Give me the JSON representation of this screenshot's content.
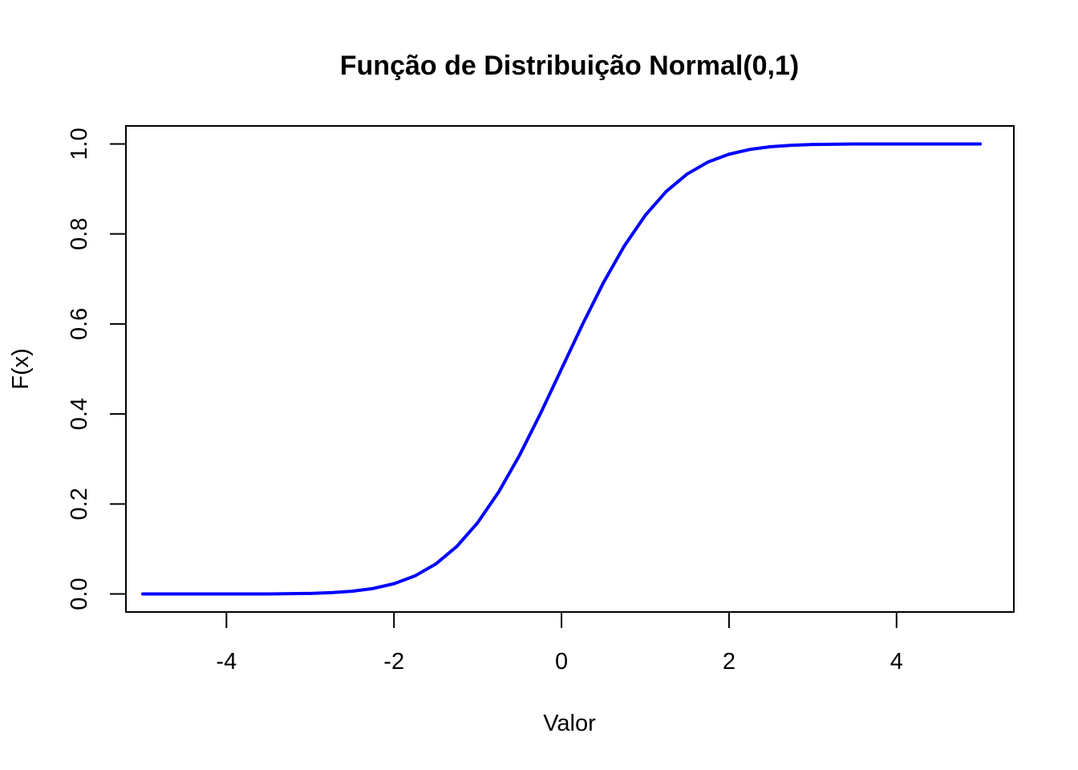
{
  "chart_data": {
    "type": "line",
    "title": "Função de Distribuição Normal(0,1)",
    "xlabel": "Valor",
    "ylabel": "F(x)",
    "xlim": [
      -5.2,
      5.4
    ],
    "ylim": [
      -0.04,
      1.04
    ],
    "x_ticks": [
      -4,
      -2,
      0,
      2,
      4
    ],
    "x_tick_labels": [
      "-4",
      "-2",
      "0",
      "2",
      "4"
    ],
    "y_ticks": [
      0.0,
      0.2,
      0.4,
      0.6,
      0.8,
      1.0
    ],
    "y_tick_labels": [
      "0.0",
      "0.2",
      "0.4",
      "0.6",
      "0.8",
      "1.0"
    ],
    "grid": false,
    "series": [
      {
        "color": "#0000ff",
        "x": [
          -5,
          -4.5,
          -4,
          -3.5,
          -3,
          -2.75,
          -2.5,
          -2.25,
          -2,
          -1.75,
          -1.5,
          -1.25,
          -1,
          -0.75,
          -0.5,
          -0.25,
          0,
          0.25,
          0.5,
          0.75,
          1,
          1.25,
          1.5,
          1.75,
          2,
          2.25,
          2.5,
          2.75,
          3,
          3.5,
          4,
          4.5,
          5
        ],
        "y": [
          0.0,
          0.0,
          0.0,
          0.0002,
          0.0013,
          0.003,
          0.0062,
          0.0122,
          0.0228,
          0.0401,
          0.0668,
          0.1056,
          0.1587,
          0.2266,
          0.3085,
          0.4013,
          0.5,
          0.5987,
          0.6915,
          0.7734,
          0.8413,
          0.8944,
          0.9332,
          0.9599,
          0.9772,
          0.9878,
          0.9938,
          0.997,
          0.9987,
          0.9998,
          1.0,
          1.0,
          1.0
        ]
      }
    ]
  }
}
